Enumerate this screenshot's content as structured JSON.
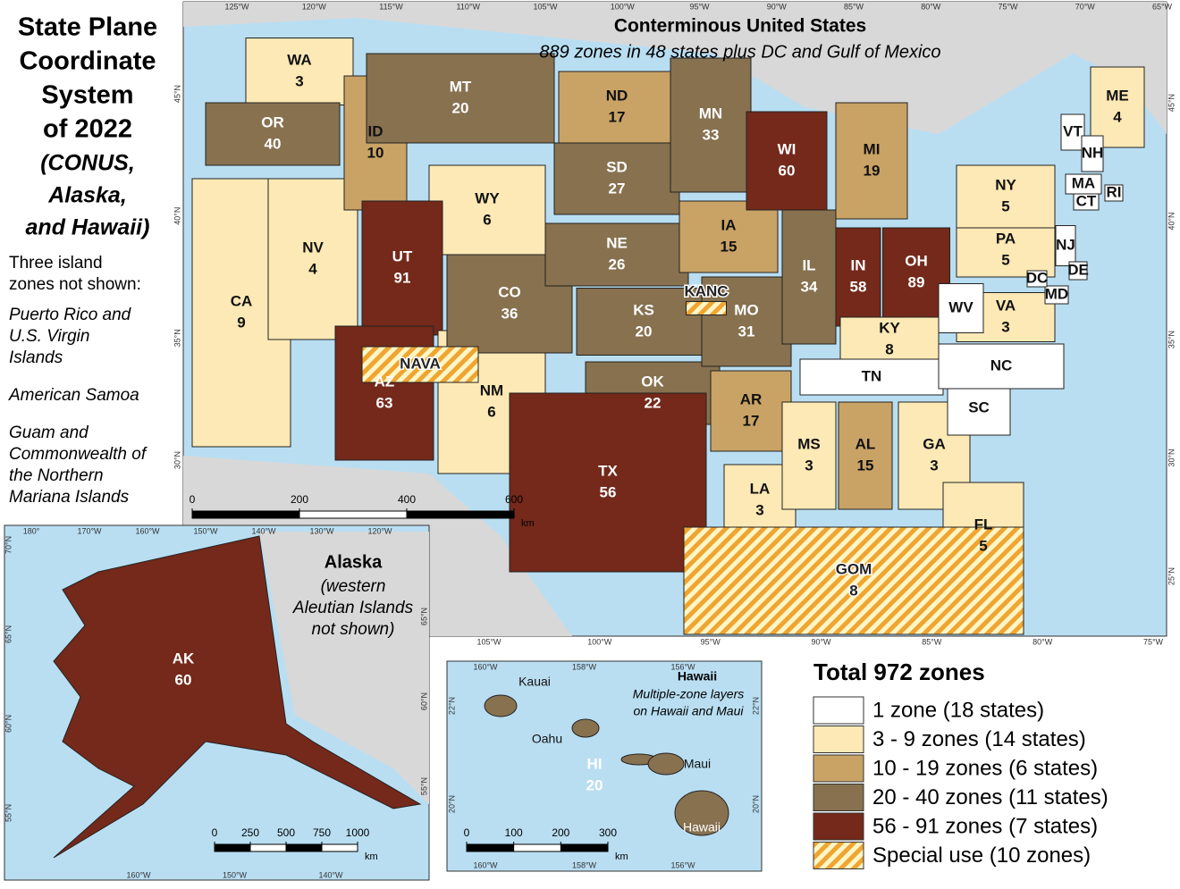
{
  "title": [
    "State Plane",
    "Coordinate",
    "System",
    "of 2022"
  ],
  "subtitle": [
    "(CONUS,",
    "Alaska,",
    "and Hawaii)"
  ],
  "note_heading": [
    "Three island",
    "zones not shown:"
  ],
  "notes": [
    [
      "Puerto Rico and",
      "U.S. Virgin",
      "Islands"
    ],
    [
      "American Samoa"
    ],
    [
      "Guam and",
      "Commonwealth of",
      "the Northern",
      "Mariana Islands"
    ]
  ],
  "conus": {
    "title": "Conterminous United States",
    "subtitle": "889 zones in 48 states plus DC and Gulf of Mexico"
  },
  "alaska": {
    "title": "Alaska",
    "note": [
      "(western",
      "Aleutian Islands",
      "not shown)"
    ]
  },
  "hawaii": {
    "title": "Hawaii",
    "note": [
      "Multiple-zone layers",
      "on Hawaii and Maui"
    ],
    "islands": [
      "Kauai",
      "Oahu",
      "Maui",
      "Hawaii"
    ]
  },
  "legend": {
    "title": "Total 972 zones",
    "items": [
      {
        "label": "1 zone (18 states)",
        "color": "#ffffff"
      },
      {
        "label": "3 - 9 zones (14 states)",
        "color": "#fde9b5"
      },
      {
        "label": "10 - 19 zones (6 states)",
        "color": "#c9a365"
      },
      {
        "label": "20 - 40 zones (11 states)",
        "color": "#87714f"
      },
      {
        "label": "56 - 91 zones (7 states)",
        "color": "#74291a"
      },
      {
        "label": "Special use (10 zones)",
        "color": "#f0a530"
      }
    ]
  },
  "states": [
    {
      "name": "WA",
      "zones": "3",
      "class": 1
    },
    {
      "name": "OR",
      "zones": "40",
      "class": 3
    },
    {
      "name": "CA",
      "zones": "9",
      "class": 1
    },
    {
      "name": "NV",
      "zones": "4",
      "class": 1
    },
    {
      "name": "ID",
      "zones": "10",
      "class": 2
    },
    {
      "name": "MT",
      "zones": "20",
      "class": 3
    },
    {
      "name": "WY",
      "zones": "6",
      "class": 1
    },
    {
      "name": "UT",
      "zones": "91",
      "class": 4
    },
    {
      "name": "AZ",
      "zones": "63",
      "class": 4
    },
    {
      "name": "NM",
      "zones": "6",
      "class": 1
    },
    {
      "name": "CO",
      "zones": "36",
      "class": 3
    },
    {
      "name": "ND",
      "zones": "17",
      "class": 2
    },
    {
      "name": "SD",
      "zones": "27",
      "class": 3
    },
    {
      "name": "NE",
      "zones": "26",
      "class": 3
    },
    {
      "name": "KS",
      "zones": "20",
      "class": 3
    },
    {
      "name": "OK",
      "zones": "22",
      "class": 3
    },
    {
      "name": "TX",
      "zones": "56",
      "class": 4
    },
    {
      "name": "MN",
      "zones": "33",
      "class": 3
    },
    {
      "name": "IA",
      "zones": "15",
      "class": 2
    },
    {
      "name": "MO",
      "zones": "31",
      "class": 3
    },
    {
      "name": "AR",
      "zones": "17",
      "class": 2
    },
    {
      "name": "LA",
      "zones": "3",
      "class": 1
    },
    {
      "name": "WI",
      "zones": "60",
      "class": 4
    },
    {
      "name": "IL",
      "zones": "34",
      "class": 3
    },
    {
      "name": "MI",
      "zones": "19",
      "class": 2
    },
    {
      "name": "IN",
      "zones": "58",
      "class": 4
    },
    {
      "name": "OH",
      "zones": "89",
      "class": 4
    },
    {
      "name": "KY",
      "zones": "8",
      "class": 1
    },
    {
      "name": "TN",
      "class": 0
    },
    {
      "name": "MS",
      "zones": "3",
      "class": 1
    },
    {
      "name": "AL",
      "zones": "15",
      "class": 2
    },
    {
      "name": "GA",
      "zones": "3",
      "class": 1
    },
    {
      "name": "FL",
      "zones": "5",
      "class": 1
    },
    {
      "name": "SC",
      "class": 0
    },
    {
      "name": "NC",
      "class": 0
    },
    {
      "name": "VA",
      "zones": "3",
      "class": 1
    },
    {
      "name": "WV",
      "class": 0
    },
    {
      "name": "PA",
      "zones": "5",
      "class": 1
    },
    {
      "name": "NY",
      "zones": "5",
      "class": 1
    },
    {
      "name": "ME",
      "zones": "4",
      "class": 1
    },
    {
      "name": "VT",
      "class": 0
    },
    {
      "name": "NH",
      "class": 0
    },
    {
      "name": "MA",
      "class": 0
    },
    {
      "name": "CT",
      "class": 0
    },
    {
      "name": "RI",
      "class": 0
    },
    {
      "name": "NJ",
      "class": 0
    },
    {
      "name": "DE",
      "class": 0
    },
    {
      "name": "MD",
      "class": 0
    },
    {
      "name": "DC",
      "class": 0
    },
    {
      "name": "NAVA",
      "class": 5
    },
    {
      "name": "KANC",
      "class": 5
    },
    {
      "name": "GOM",
      "zones": "8",
      "class": 5
    },
    {
      "name": "AK",
      "zones": "60",
      "class": 4
    },
    {
      "name": "HI",
      "zones": "20",
      "class": 3
    }
  ],
  "graticule": {
    "conus_top": [
      "125°W",
      "120°W",
      "115°W",
      "110°W",
      "105°W",
      "100°W",
      "95°W",
      "90°W",
      "85°W",
      "80°W",
      "75°W",
      "70°W",
      "65°W"
    ],
    "conus_bottom": [
      "105°W",
      "100°W",
      "95°W",
      "90°W",
      "85°W",
      "80°W",
      "75°W"
    ],
    "conus_left": [
      "45°N",
      "40°N",
      "35°N",
      "30°N"
    ],
    "conus_right": [
      "45°N",
      "40°N",
      "35°N",
      "30°N",
      "25°N"
    ],
    "alaska_top": [
      "180°",
      "170°W",
      "160°W",
      "150°W",
      "140°W",
      "130°W",
      "120°W"
    ],
    "alaska_bottom": [
      "160°W",
      "150°W",
      "140°W"
    ],
    "alaska_left": [
      "70°N",
      "65°N",
      "60°N",
      "55°N"
    ],
    "alaska_right": [
      "65°N",
      "60°N",
      "55°N"
    ],
    "hawaii_top": [
      "160°W",
      "158°W",
      "156°W"
    ],
    "hawaii_bottom": [
      "160°W",
      "158°W",
      "156°W"
    ],
    "hawaii_left": [
      "22°N",
      "20°N"
    ],
    "hawaii_right": [
      "22°N",
      "20°N"
    ]
  },
  "scale_bars": {
    "conus": {
      "ticks": [
        0,
        200,
        400,
        600
      ],
      "unit": "km"
    },
    "alaska": {
      "ticks": [
        0,
        250,
        500,
        750,
        1000
      ],
      "unit": "km"
    },
    "hawaii": {
      "ticks": [
        0,
        100,
        200,
        300
      ],
      "unit": "km"
    }
  }
}
